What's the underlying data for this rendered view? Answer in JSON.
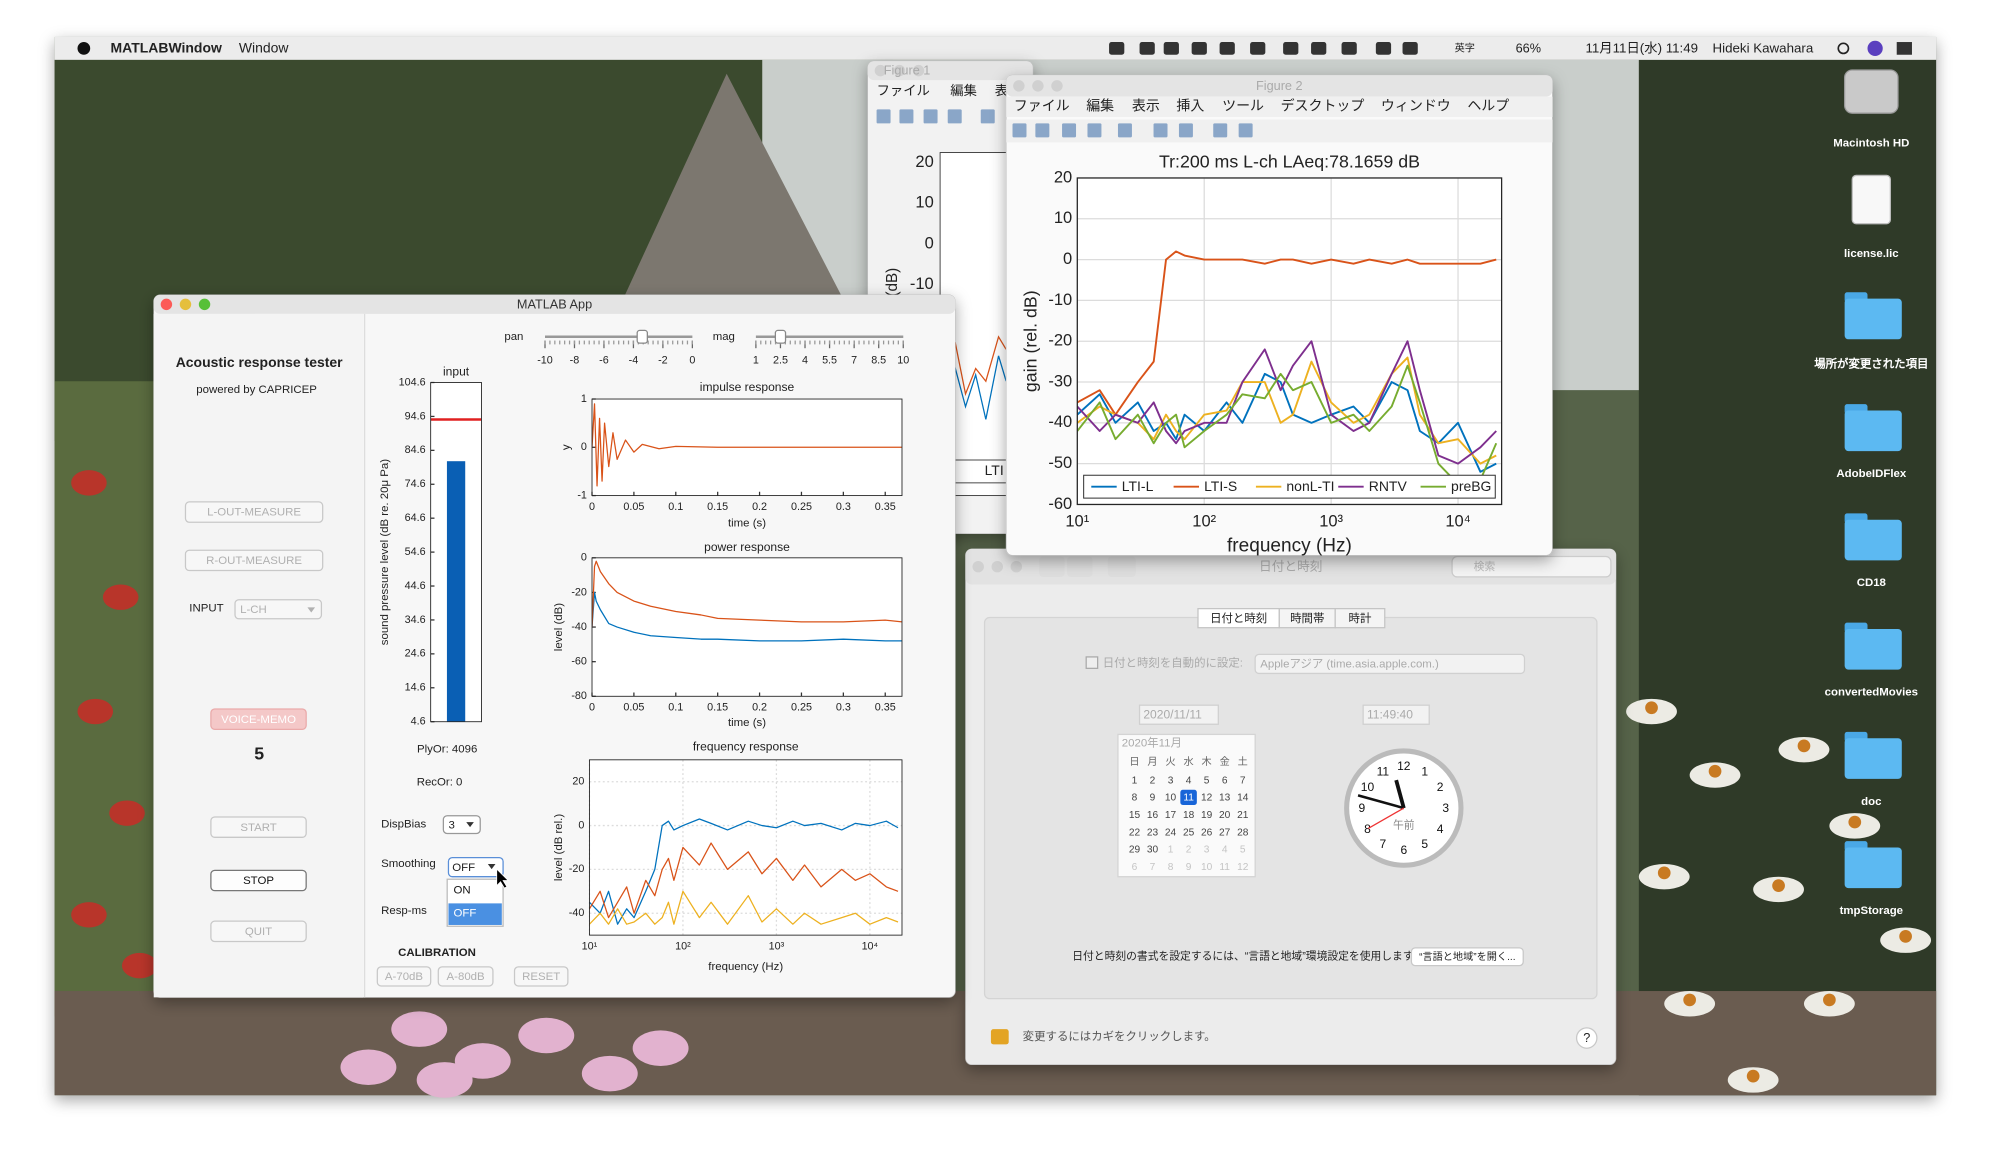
{
  "menubar": {
    "app": "MATLABWindow",
    "items": [
      "Window"
    ],
    "ime": "英字",
    "battery": "66%",
    "datetime": "11月11日(水) 11:49",
    "user": "Hideki Kawahara"
  },
  "desktop_icons": [
    "Macintosh HD",
    "license.lic",
    "場所が変更された項目",
    "AdobeIDFlex",
    "CD18",
    "convertedMovies",
    "doc",
    "tmpStorage"
  ],
  "figure1": {
    "title": "Figure 1",
    "menu": [
      "ファイル",
      "編集",
      "表"
    ],
    "tick_labels": [
      20,
      10,
      0,
      -10
    ],
    "axis_label": "(dB)",
    "legend": "LTI"
  },
  "figure2": {
    "title": "Figure 2",
    "menu": [
      "ファイル",
      "編集",
      "表示",
      "挿入",
      "ツール",
      "デスクトップ",
      "ウィンドウ",
      "ヘルプ"
    ]
  },
  "datetime_window": {
    "title": "日付と時刻",
    "search": "検索",
    "tabs": [
      "日付と時刻",
      "時間帯",
      "時計"
    ],
    "auto_set": "日付と時刻を自動的に設定:",
    "server": "Appleアジア (time.asia.apple.com.)",
    "date": "2020/11/11",
    "time": "11:49:40",
    "calendar": {
      "month": "2020年11月",
      "weekdays": [
        "日",
        "月",
        "火",
        "水",
        "木",
        "金",
        "土"
      ],
      "weeks": [
        [
          1,
          2,
          3,
          4,
          5,
          6,
          7
        ],
        [
          8,
          9,
          10,
          11,
          12,
          13,
          14
        ],
        [
          15,
          16,
          17,
          18,
          19,
          20,
          21
        ],
        [
          22,
          23,
          24,
          25,
          26,
          27,
          28
        ],
        [
          29,
          30,
          1,
          2,
          3,
          4,
          5
        ],
        [
          6,
          7,
          8,
          9,
          10,
          11,
          12
        ]
      ]
    },
    "clock": {
      "numbers": [
        12,
        1,
        2,
        3,
        4,
        5,
        6,
        7,
        8,
        9,
        10,
        11
      ],
      "ampm": "午前"
    },
    "note": "日付と時刻の書式を設定するには、“言語と地域”環境設定を使用します。",
    "open_button": "“言語と地域”を開く...",
    "lock_text": "変更するにはカギをクリックします。",
    "help": "?"
  },
  "app": {
    "window_title": "MATLAB App",
    "title": "Acoustic response tester",
    "subtitle": "powered by CAPRICEP",
    "l_out": "L-OUT-MEASURE",
    "r_out": "R-OUT-MEASURE",
    "input_label": "INPUT",
    "input_value": "L-CH",
    "voice_memo": "VOICE-MEMO",
    "count": 5,
    "start": "START",
    "stop": "STOP",
    "quit": "QUIT",
    "pan": "pan",
    "pan_ticks": [
      -10,
      -8,
      -6,
      -4,
      -2,
      0
    ],
    "pan_value": -3.4,
    "mag": "mag",
    "mag_ticks": [
      1,
      2.5,
      4,
      5.5,
      7,
      8.5,
      10
    ],
    "mag_value": 2.5,
    "ply": "PlyOr: 4096",
    "rec": "RecOr: 0",
    "disp_bias": "DispBias",
    "disp_bias_value": 3,
    "smoothing": "Smoothing",
    "smoothing_value": "OFF",
    "smoothing_options": [
      "ON",
      "OFF"
    ],
    "resp_ms": "Resp-ms",
    "calibration": "CALIBRATION",
    "cal_buttons": [
      "A-70dB",
      "A-80dB",
      "RESET"
    ]
  },
  "chart_data": [
    {
      "type": "line",
      "title": "Tr:200 ms L-ch LAeq:78.1659 dB",
      "x_label": "frequency (Hz)",
      "y_label": "gain (rel. dB)",
      "xscale": "log",
      "grid": true,
      "legend": "bottom",
      "xlim": [
        10,
        22050
      ],
      "xticks": [
        {
          "value": 10,
          "label": "10¹"
        },
        {
          "value": 100,
          "label": "10²"
        },
        {
          "value": 1000,
          "label": "10³"
        },
        {
          "value": 10000,
          "label": "10⁴"
        }
      ],
      "ylim": [
        -60,
        20
      ],
      "yticks": [
        -60,
        -50,
        -40,
        -30,
        -20,
        -10,
        0,
        10,
        20
      ],
      "x": [
        10,
        15,
        20,
        30,
        40,
        50,
        60,
        70,
        100,
        150,
        200,
        300,
        400,
        500,
        700,
        1000,
        1500,
        2000,
        3000,
        4000,
        5000,
        7000,
        10000,
        15000,
        20000
      ],
      "series": [
        {
          "name": "LTI-L",
          "color": "#0072bd",
          "values": [
            -38,
            -33,
            -40,
            -35,
            -42,
            -40,
            -44,
            -38,
            -42,
            -35,
            -40,
            -28,
            -30,
            -38,
            -40,
            -38,
            -36,
            -40,
            -30,
            -32,
            -42,
            -45,
            -40,
            -52,
            -50
          ]
        },
        {
          "name": "LTI-S",
          "color": "#d95319",
          "values": [
            -35,
            -32,
            -38,
            -30,
            -25,
            0,
            2,
            1,
            0,
            0,
            0,
            -1,
            0,
            0,
            -1,
            0,
            -1,
            0,
            -1,
            0,
            -1,
            -1,
            -1,
            -1,
            0
          ]
        },
        {
          "name": "nonL-TI",
          "color": "#edb120",
          "values": [
            -40,
            -36,
            -38,
            -40,
            -44,
            -38,
            -42,
            -44,
            -38,
            -37,
            -30,
            -30,
            -40,
            -38,
            -25,
            -35,
            -40,
            -38,
            -28,
            -24,
            -38,
            -45,
            -44,
            -50,
            -48
          ]
        },
        {
          "name": "RNTV",
          "color": "#7e2f8e",
          "values": [
            -36,
            -42,
            -38,
            -40,
            -35,
            -42,
            -45,
            -42,
            -40,
            -40,
            -30,
            -22,
            -32,
            -26,
            -20,
            -38,
            -42,
            -40,
            -28,
            -20,
            -32,
            -48,
            -50,
            -46,
            -42
          ]
        },
        {
          "name": "preBG",
          "color": "#77ac30",
          "values": [
            -42,
            -35,
            -44,
            -38,
            -45,
            -40,
            -38,
            -46,
            -42,
            -38,
            -33,
            -34,
            -28,
            -32,
            -30,
            -40,
            -38,
            -42,
            -36,
            -26,
            -35,
            -50,
            -55,
            -54,
            -45
          ]
        }
      ]
    },
    {
      "type": "line",
      "title": "impulse response",
      "x_label": "time (s)",
      "y_label": "y",
      "xlim": [
        0,
        0.37
      ],
      "xticks": [
        0,
        0.05,
        0.1,
        0.15,
        0.2,
        0.25,
        0.3,
        0.35
      ],
      "ylim": [
        -1,
        1
      ],
      "yticks": [
        -1,
        0,
        1
      ],
      "x": [
        0,
        0.003,
        0.006,
        0.009,
        0.012,
        0.015,
        0.02,
        0.025,
        0.03,
        0.04,
        0.05,
        0.06,
        0.08,
        0.1,
        0.15,
        0.2,
        0.25,
        0.3,
        0.35,
        0.37
      ],
      "series": [
        {
          "color": "#d95319",
          "values": [
            0,
            0.9,
            -0.8,
            0.6,
            -0.7,
            0.5,
            -0.4,
            0.3,
            -0.25,
            0.15,
            -0.1,
            0.06,
            -0.03,
            0.02,
            0,
            0,
            0,
            0,
            0,
            0
          ]
        }
      ]
    },
    {
      "type": "line",
      "title": "power response",
      "x_label": "time (s)",
      "y_label": "level (dB)",
      "xlim": [
        0,
        0.37
      ],
      "xticks": [
        0,
        0.05,
        0.1,
        0.15,
        0.2,
        0.25,
        0.3,
        0.35
      ],
      "ylim": [
        -80,
        0
      ],
      "yticks": [
        -80,
        -60,
        -40,
        -20,
        0
      ],
      "x": [
        0,
        0.003,
        0.005,
        0.01,
        0.02,
        0.03,
        0.05,
        0.07,
        0.1,
        0.13,
        0.15,
        0.2,
        0.25,
        0.3,
        0.35,
        0.37
      ],
      "series": [
        {
          "color": "#0072bd",
          "values": [
            -40,
            -20,
            -25,
            -30,
            -38,
            -40,
            -43,
            -45,
            -46,
            -47,
            -47,
            -48,
            -48,
            -47,
            -48,
            -48
          ]
        },
        {
          "color": "#d95319",
          "values": [
            -40,
            -5,
            -2,
            -8,
            -15,
            -20,
            -25,
            -28,
            -31,
            -33,
            -35,
            -36,
            -37,
            -37,
            -36,
            -37
          ]
        }
      ]
    },
    {
      "type": "line",
      "title": "frequency response",
      "x_label": "frequency (Hz)",
      "y_label": "level (dB rel.)",
      "xscale": "log",
      "grid": true,
      "xlim": [
        10,
        22050
      ],
      "xticks": [
        {
          "value": 10,
          "label": "10¹"
        },
        {
          "value": 100,
          "label": "10²"
        },
        {
          "value": 1000,
          "label": "10³"
        },
        {
          "value": 10000,
          "label": "10⁴"
        }
      ],
      "ylim": [
        -50,
        30
      ],
      "yticks": [
        -40,
        -20,
        0,
        20
      ],
      "x": [
        10,
        13,
        16,
        20,
        25,
        30,
        40,
        50,
        60,
        70,
        80,
        100,
        150,
        200,
        300,
        500,
        700,
        1000,
        1500,
        2000,
        3000,
        5000,
        7000,
        10000,
        15000,
        20000
      ],
      "series": [
        {
          "color": "#0072bd",
          "values": [
            -35,
            -40,
            -30,
            -45,
            -38,
            -42,
            -30,
            -20,
            0,
            2,
            -2,
            0,
            3,
            1,
            -2,
            2,
            0,
            -1,
            2,
            0,
            1,
            -2,
            1,
            0,
            2,
            -1
          ]
        },
        {
          "color": "#d95319",
          "values": [
            -38,
            -30,
            -42,
            -35,
            -28,
            -40,
            -25,
            -32,
            -20,
            -15,
            -25,
            -10,
            -18,
            -8,
            -20,
            -12,
            -22,
            -15,
            -25,
            -18,
            -28,
            -20,
            -25,
            -22,
            -28,
            -30
          ]
        },
        {
          "color": "#edb120",
          "values": [
            -45,
            -40,
            -45,
            -38,
            -45,
            -44,
            -40,
            -45,
            -42,
            -35,
            -45,
            -30,
            -42,
            -35,
            -45,
            -32,
            -44,
            -38,
            -45,
            -40,
            -45,
            -42,
            -40,
            -45,
            -42,
            -44
          ]
        }
      ]
    },
    {
      "type": "bar",
      "title": "input",
      "y_label": "sound pressure level (dB re. 20μ Pa)",
      "ylim": [
        4.6,
        104.6
      ],
      "yticks": [
        4.6,
        14.6,
        24.6,
        34.6,
        44.6,
        54.6,
        64.6,
        74.6,
        84.6,
        94.6,
        104.6
      ],
      "values": [
        81.4
      ],
      "color": "#0a5fb4",
      "reference": 93.7,
      "reference_color": "#e02020"
    }
  ]
}
